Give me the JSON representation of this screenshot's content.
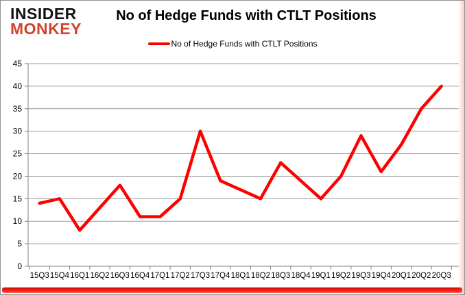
{
  "logo": {
    "line1": "INSIDER",
    "line2": "MONKEY"
  },
  "header": {
    "title": "No of Hedge Funds with CTLT Positions",
    "legend_label": "No of Hedge Funds with CTLT Positions"
  },
  "chart_data": {
    "type": "line",
    "title": "No of Hedge Funds with CTLT Positions",
    "legend": [
      "No of Hedge Funds with CTLT Positions"
    ],
    "legend_position": "top",
    "grid": true,
    "categories": [
      "15Q3",
      "15Q4",
      "16Q1",
      "16Q2",
      "16Q3",
      "16Q4",
      "17Q1",
      "17Q2",
      "17Q3",
      "17Q4",
      "18Q1",
      "18Q2",
      "18Q3",
      "18Q4",
      "19Q1",
      "19Q2",
      "19Q3",
      "19Q4",
      "20Q1",
      "20Q2",
      "20Q3"
    ],
    "series": [
      {
        "name": "No of Hedge Funds with CTLT Positions",
        "color": "#ff0000",
        "values": [
          14,
          15,
          8,
          13,
          18,
          11,
          11,
          15,
          30,
          19,
          17,
          15,
          23,
          19,
          15,
          20,
          29,
          21,
          27,
          35,
          40
        ]
      }
    ],
    "xlabel": "",
    "ylabel": "",
    "ylim": [
      0,
      45
    ],
    "ytick_interval": 5,
    "yticks": [
      0,
      5,
      10,
      15,
      20,
      25,
      30,
      35,
      40,
      45
    ]
  },
  "colors": {
    "line": "#ff0000",
    "gridline": "#9a9a9a",
    "axis": "#7f7f7f",
    "tick_text": "#000000",
    "logo_insider": "#141414",
    "logo_monkey": "#d0432c",
    "bottom_bar": "#e81010"
  }
}
